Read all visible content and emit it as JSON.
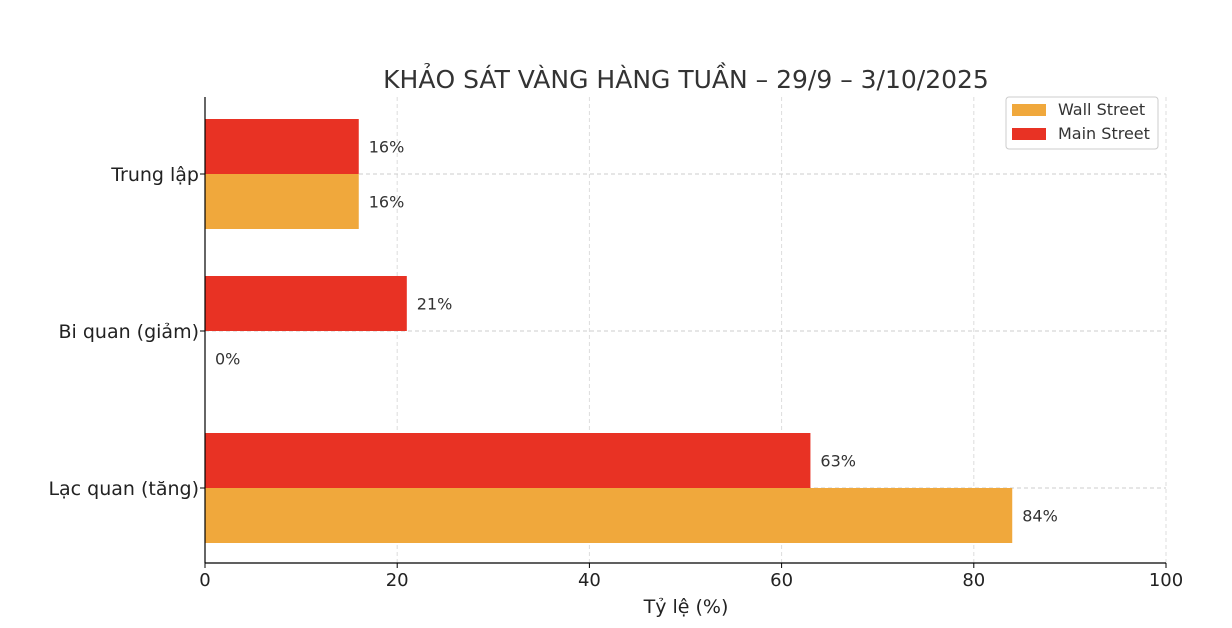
{
  "chart_data": {
    "type": "bar",
    "orientation": "horizontal",
    "title": "KHẢO SÁT VÀNG HÀNG TUẦN – 29/9 – 3/10/2025",
    "xlabel": "Tỷ lệ (%)",
    "ylabel": "",
    "xlim": [
      0,
      100
    ],
    "xticks": [
      "0",
      "20",
      "40",
      "60",
      "80",
      "100"
    ],
    "categories": [
      "Trung lập",
      "Bi quan (giảm)",
      "Lạc quan (tăng)"
    ],
    "series": [
      {
        "name": "Wall Street",
        "color": "#f0a83c",
        "values": [
          16,
          0,
          84
        ],
        "labels": [
          "16%",
          "0%",
          "84%"
        ]
      },
      {
        "name": "Main Street",
        "color": "#e83224",
        "values": [
          16,
          21,
          63
        ],
        "labels": [
          "16%",
          "21%",
          "63%"
        ]
      }
    ],
    "grid": true,
    "legend": "top-right"
  }
}
